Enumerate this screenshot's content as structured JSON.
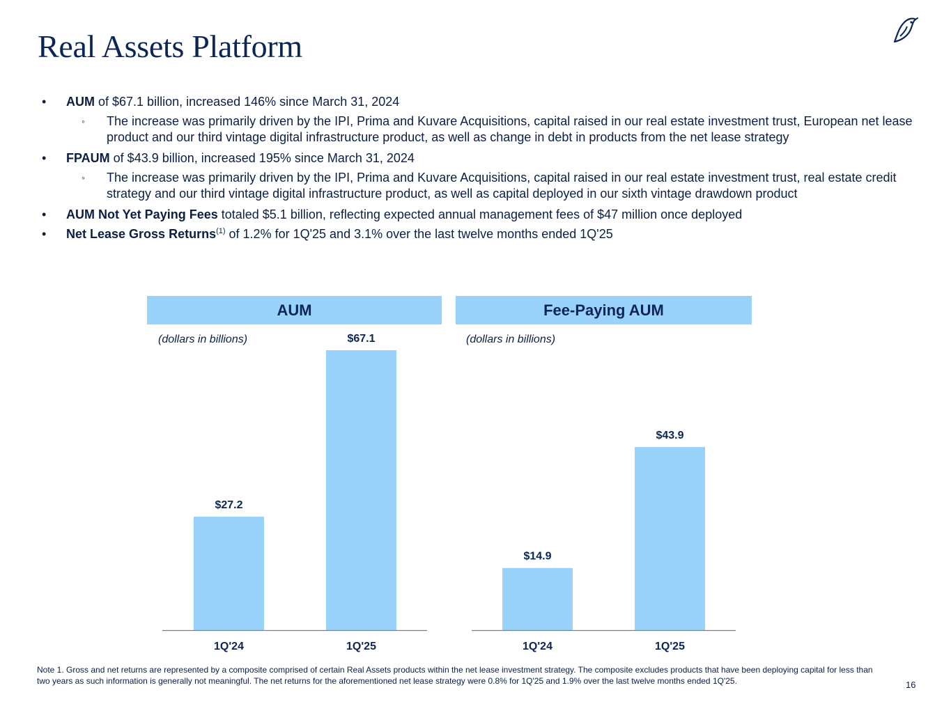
{
  "title": "Real Assets Platform",
  "bullets": [
    {
      "bold": "AUM",
      "text": " of $67.1 billion, increased 146% since March 31, 2024",
      "sub": "The increase was primarily driven by the IPI, Prima and Kuvare Acquisitions, capital raised in our real estate investment trust, European net lease product and our third vintage digital infrastructure product, as well as change in debt in products from the net lease strategy"
    },
    {
      "bold": "FPAUM",
      "text": " of $43.9 billion, increased 195% since March 31, 2024",
      "sub": "The increase was primarily driven by the IPI, Prima and Kuvare Acquisitions, capital raised in our real estate investment trust, real estate credit strategy and our third vintage digital infrastructure product, as well as capital deployed in our sixth vintage drawdown product"
    },
    {
      "bold": "AUM Not Yet Paying Fees",
      "text": " totaled $5.1 billion, reflecting expected annual management fees of $47 million once deployed"
    },
    {
      "bold": "Net Lease Gross Returns",
      "sup": "(1)",
      "text": " of 1.2% for 1Q'25 and 3.1% over the last twelve months ended 1Q'25"
    }
  ],
  "bullet_marker": "•",
  "sub_marker": "◦",
  "chart_data": [
    {
      "type": "bar",
      "title": "AUM",
      "subtitle": "(dollars in billions)",
      "categories": [
        "1Q'24",
        "1Q'25"
      ],
      "values": [
        27.2,
        67.1
      ],
      "labels": [
        "$27.2",
        "$67.1"
      ],
      "bar_color": "#99d3fb",
      "grid": false
    },
    {
      "type": "bar",
      "title": "Fee-Paying AUM",
      "subtitle": "(dollars in billions)",
      "categories": [
        "1Q'24",
        "1Q'25"
      ],
      "values": [
        14.9,
        43.9
      ],
      "labels": [
        "$14.9",
        "$43.9"
      ],
      "bar_color": "#99d3fb",
      "grid": false
    }
  ],
  "footnote": "Note 1. Gross and net returns are represented by a composite comprised of certain Real Assets products within the net lease investment strategy. The composite excludes products that have been deploying capital for less than two years as such information is generally not meaningful. The net returns for the aforementioned net lease strategy were 0.8% for 1Q'25 and 1.9% over the last twelve months ended 1Q'25.",
  "page_number": "16",
  "colors": {
    "navy": "#0b2654",
    "text": "#0b1f44",
    "bar": "#99d3fb",
    "axis": "#7f7f7f"
  }
}
